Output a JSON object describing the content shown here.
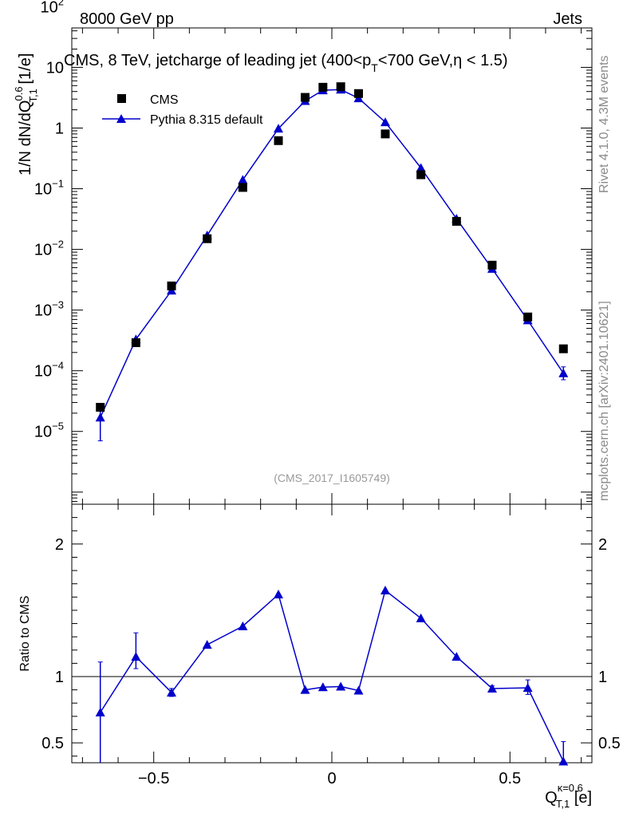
{
  "header": {
    "left": "8000 GeV pp",
    "right": "Jets",
    "side_version": "Rivet 4.1.0,  4.3M events",
    "side_source": "mcplots.cern.ch [arXiv:2401.10621]",
    "analysis": "(CMS_2017_I1605749)"
  },
  "colors": {
    "data": "#000000",
    "mc": "#0000cc",
    "axis": "#000000",
    "watermark": "#8a8a8a"
  },
  "chart_data": [
    {
      "type": "scatter",
      "panel": "main",
      "title": "CMS, 8 TeV, jetcharge of leading jet (400<pT<700 GeV,η < 1.5)",
      "title_parts": {
        "pre": "CMS, 8 TeV, jetcharge of leading jet (400<p",
        "sub": "T",
        "post": "<700 GeV,η < 1.5)"
      },
      "ylabel": {
        "main": "1/N dN/dQ",
        "sub": "T,1",
        "sup": "0.6",
        "unit": " [1/e]"
      },
      "yscale": "log",
      "xlim": [
        -0.73,
        0.73
      ],
      "ylim_exp": [
        -6.2,
        1.65
      ],
      "y_tick_labels": [
        {
          "exp": -5,
          "base": "10",
          "sup": "−5"
        },
        {
          "exp": -4,
          "base": "10",
          "sup": "−4"
        },
        {
          "exp": -3,
          "base": "10",
          "sup": "−3"
        },
        {
          "exp": -2,
          "base": "10",
          "sup": "−2"
        },
        {
          "exp": -1,
          "base": "10",
          "sup": "−1"
        },
        {
          "exp": 0,
          "base": "1",
          "sup": ""
        },
        {
          "exp": 1,
          "base": "10",
          "sup": ""
        },
        {
          "exp": 2,
          "base": "10",
          "sup": "2"
        }
      ],
      "legend": {
        "position": "top-left",
        "entries": [
          "CMS",
          "Pythia 8.315 default"
        ]
      },
      "x": [
        -0.65,
        -0.55,
        -0.45,
        -0.35,
        -0.25,
        -0.15,
        -0.075,
        -0.025,
        0.025,
        0.075,
        0.15,
        0.25,
        0.35,
        0.45,
        0.55,
        0.65
      ],
      "series": [
        {
          "name": "CMS",
          "marker": "square",
          "values": [
            2.5e-05,
            0.00029,
            0.0025,
            0.015,
            0.105,
            0.62,
            3.2,
            4.7,
            4.8,
            3.7,
            0.8,
            0.17,
            0.029,
            0.0055,
            0.00077,
            0.00023
          ]
        },
        {
          "name": "Pythia 8.315 default",
          "marker": "triangle",
          "values": [
            1.7e-05,
            0.00033,
            0.0021,
            0.017,
            0.14,
            0.98,
            2.8,
            4.2,
            4.3,
            3.1,
            1.25,
            0.22,
            0.032,
            0.0048,
            0.00068,
            9.1e-05
          ],
          "err_lo": [
            1e-05,
            0,
            0,
            0,
            0,
            0,
            0,
            0,
            0,
            0,
            0,
            0,
            0,
            0,
            0,
            2e-05
          ],
          "err_hi": [
            1e-05,
            0,
            0,
            0,
            0,
            0,
            0,
            0,
            0,
            0,
            0,
            0,
            0,
            0,
            0,
            2.5e-05
          ]
        }
      ]
    },
    {
      "type": "line",
      "panel": "ratio",
      "ylabel": "Ratio to CMS",
      "xlabel": {
        "main": "Q",
        "sub": "T,1",
        "sup": "κ=0.6",
        "unit": " [e]"
      },
      "xlim": [
        -0.73,
        0.73
      ],
      "ylim": [
        0.35,
        2.3
      ],
      "x_tick_labels": [
        "−0.5",
        "0",
        "0.5"
      ],
      "x_tick_values": [
        -0.5,
        0,
        0.5
      ],
      "y_tick_labels": [
        "0.5",
        "1",
        "2"
      ],
      "y_tick_values": [
        0.5,
        1,
        2
      ],
      "reference": 1,
      "x": [
        -0.65,
        -0.55,
        -0.45,
        -0.35,
        -0.25,
        -0.15,
        -0.075,
        -0.025,
        0.025,
        0.075,
        0.15,
        0.25,
        0.35,
        0.45,
        0.55,
        0.65
      ],
      "series": [
        {
          "name": "Pythia 8.315 default",
          "values": [
            0.73,
            1.15,
            0.88,
            1.24,
            1.38,
            1.62,
            0.9,
            0.92,
            0.925,
            0.895,
            1.65,
            1.44,
            1.15,
            0.91,
            0.915,
            0.36
          ],
          "err_lo": [
            0.38,
            0.09,
            0.03,
            0,
            0,
            0,
            0,
            0,
            0,
            0,
            0,
            0,
            0,
            0.02,
            0.05,
            0.01
          ],
          "err_hi": [
            0.38,
            0.18,
            0.03,
            0,
            0,
            0,
            0,
            0,
            0,
            0,
            0,
            0,
            0,
            0.02,
            0.06,
            0.15
          ]
        }
      ]
    }
  ]
}
